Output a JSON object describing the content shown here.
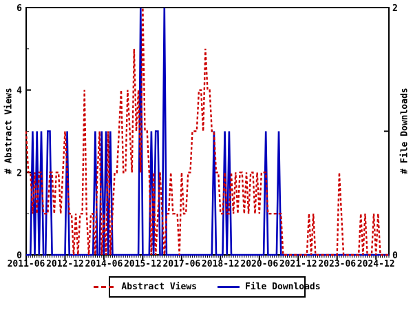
{
  "chart_data": {
    "type": "line",
    "title": "",
    "x_start": "2011-06",
    "x_end": "2025-06",
    "x_interval": "monthly",
    "x_tick_labels": [
      "2011-06",
      "2012-12",
      "2014-06",
      "2015-12",
      "2017-06",
      "2018-12",
      "2020-06",
      "2021-12",
      "2023-06",
      "2024-12"
    ],
    "x_tick_month_indices": [
      0,
      18,
      36,
      54,
      72,
      90,
      108,
      126,
      144,
      162
    ],
    "grid": false,
    "legend_position": "bottom-center",
    "y_left": {
      "label": "# Abstract Views",
      "min": 0,
      "max": 6,
      "major_ticks": [
        0,
        2,
        4,
        6
      ],
      "minor_ticks": [
        1,
        3,
        5
      ]
    },
    "y_right": {
      "label": "# File Downloads",
      "min": 0,
      "max": 2,
      "labeled_ticks": [
        0,
        2
      ],
      "minor_ticks": [
        1
      ]
    },
    "series": [
      {
        "name": "Abstract Views",
        "color": "#cc0000",
        "style": "dashed",
        "axis": "left",
        "values": [
          3,
          2,
          2,
          1,
          2,
          1,
          2,
          2,
          1,
          1,
          1,
          2,
          2,
          1,
          2,
          2,
          1,
          2,
          3,
          2,
          1,
          1,
          0,
          1,
          0,
          1,
          1,
          4,
          1,
          0,
          1,
          1,
          0,
          2,
          3,
          0,
          1,
          0,
          3,
          0,
          1,
          2,
          2,
          3,
          4,
          2,
          2,
          4,
          3,
          2,
          5,
          3,
          4,
          2,
          6,
          3,
          3,
          2,
          0,
          2,
          0,
          1,
          2,
          1,
          0,
          1,
          1,
          2,
          1,
          1,
          1,
          0,
          2,
          1,
          1,
          2,
          2,
          3,
          3,
          3,
          4,
          4,
          3,
          5,
          4,
          4,
          3,
          3,
          2,
          2,
          1,
          1,
          2,
          1,
          1,
          2,
          1,
          2,
          1,
          2,
          2,
          1,
          2,
          1,
          2,
          2,
          1,
          2,
          1,
          2,
          2,
          2,
          1,
          1,
          1,
          1,
          1,
          1,
          1,
          0,
          0,
          0,
          0,
          0,
          0,
          0,
          0,
          0,
          0,
          0,
          0,
          1,
          0,
          1,
          0,
          0,
          0,
          0,
          0,
          0,
          0,
          0,
          0,
          0,
          0,
          2,
          1,
          0,
          0,
          0,
          0,
          0,
          0,
          0,
          0,
          1,
          0,
          1,
          0,
          0,
          0,
          1,
          0,
          1,
          0,
          0,
          0,
          0,
          0
        ]
      },
      {
        "name": "File Downloads",
        "color": "#0000bb",
        "style": "solid",
        "axis": "right",
        "values": [
          0,
          0,
          0,
          1,
          0,
          1,
          0,
          1,
          0,
          0,
          1,
          1,
          0,
          0,
          0,
          0,
          0,
          0,
          0,
          1,
          0,
          0,
          0,
          0,
          0,
          0,
          0,
          0,
          0,
          0,
          0,
          0,
          1,
          0,
          0,
          1,
          0,
          1,
          0,
          1,
          0,
          0,
          0,
          0,
          0,
          0,
          0,
          0,
          0,
          0,
          0,
          0,
          0,
          2,
          0,
          0,
          0,
          0,
          1,
          0,
          1,
          1,
          0,
          0,
          2,
          0,
          0,
          0,
          0,
          0,
          0,
          0,
          0,
          0,
          0,
          0,
          0,
          0,
          0,
          0,
          0,
          0,
          0,
          0,
          0,
          0,
          0,
          1,
          0,
          0,
          0,
          0,
          1,
          0,
          1,
          0,
          0,
          0,
          0,
          0,
          0,
          0,
          0,
          0,
          0,
          0,
          0,
          0,
          0,
          0,
          0,
          1,
          0,
          0,
          0,
          0,
          0,
          1,
          0,
          0,
          0,
          0,
          0,
          0,
          0,
          0,
          0,
          0,
          0,
          0,
          0,
          0,
          0,
          0,
          0,
          0,
          0,
          0,
          0,
          0,
          0,
          0,
          0,
          0,
          0,
          0,
          0,
          0,
          0,
          0,
          0,
          0,
          0,
          0,
          0,
          0,
          0,
          0,
          0,
          0,
          0,
          0,
          0,
          0,
          0,
          0,
          0,
          0,
          0
        ]
      }
    ]
  },
  "colors": {
    "views": "#cc0000",
    "downloads": "#0000bb",
    "axis": "#000000",
    "background": "#ffffff"
  }
}
